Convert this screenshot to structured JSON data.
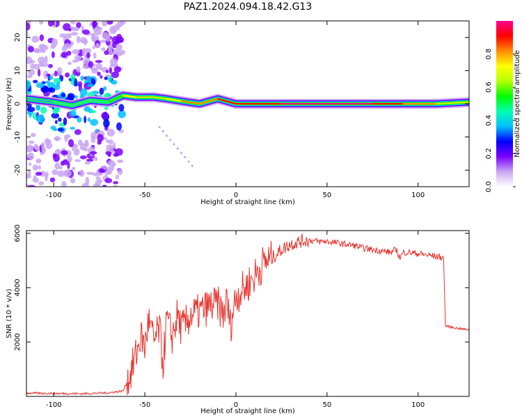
{
  "figure": {
    "title": "PAZ1.2024.094.18.42.G13"
  },
  "chart_data": [
    {
      "type": "heatmap",
      "xlabel": "Height of straight line (km)",
      "ylabel": "Frequency (Hz)",
      "xlim": [
        -115,
        128
      ],
      "ylim": [
        -25,
        25
      ],
      "xticks": [
        -100,
        -50,
        0,
        50,
        100
      ],
      "yticks": [
        -20,
        -10,
        0,
        10,
        20
      ],
      "colorbar": {
        "label": "Normalized spectral amplitude",
        "range": [
          0,
          1
        ],
        "ticks": [
          "0.0",
          "0.2",
          "0.4",
          "0.6",
          "0.8"
        ],
        "colors": [
          "#ffffff",
          "#c9a6f2",
          "#7b00ff",
          "#0000ff",
          "#00bfff",
          "#00ffb0",
          "#00ff00",
          "#b5ff00",
          "#ffff00",
          "#ff8c00",
          "#ff0000",
          "#ff0090"
        ]
      },
      "ridge": [
        {
          "x": -115,
          "f": 1.5,
          "a": 0.35
        },
        {
          "x": -100,
          "f": 0.5,
          "a": 0.45
        },
        {
          "x": -90,
          "f": -0.5,
          "a": 0.4
        },
        {
          "x": -80,
          "f": 1.0,
          "a": 0.45
        },
        {
          "x": -70,
          "f": 0.5,
          "a": 0.4
        },
        {
          "x": -62,
          "f": 2.5,
          "a": 0.75
        },
        {
          "x": -55,
          "f": 2.0,
          "a": 0.65
        },
        {
          "x": -45,
          "f": 2.0,
          "a": 0.6
        },
        {
          "x": -38,
          "f": 1.5,
          "a": 0.7
        },
        {
          "x": -30,
          "f": 0.8,
          "a": 0.75
        },
        {
          "x": -20,
          "f": 0.0,
          "a": 0.85
        },
        {
          "x": -10,
          "f": 1.5,
          "a": 0.8
        },
        {
          "x": 0,
          "f": 0.0,
          "a": 0.95
        },
        {
          "x": 25,
          "f": 0.0,
          "a": 0.95
        },
        {
          "x": 50,
          "f": 0.0,
          "a": 0.97
        },
        {
          "x": 75,
          "f": 0.0,
          "a": 0.95
        },
        {
          "x": 92,
          "f": 0.0,
          "a": 0.8
        },
        {
          "x": 110,
          "f": 0.0,
          "a": 0.75
        },
        {
          "x": 128,
          "f": 0.5,
          "a": 0.5
        }
      ]
    },
    {
      "type": "line",
      "xlabel": "Height of straight line (km)",
      "ylabel": "SNR (10 * v/v)",
      "xlim": [
        -115,
        128
      ],
      "ylim": [
        0,
        6100
      ],
      "xticks": [
        -100,
        -50,
        0,
        50,
        100
      ],
      "yticks": [
        2000,
        4000,
        6000
      ],
      "series": [
        {
          "color": "#e8332e",
          "x": [
            -115,
            -100,
            -85,
            -70,
            -62,
            -58,
            -55,
            -52,
            -50,
            -48,
            -45,
            -42,
            -40,
            -38,
            -35,
            -32,
            -30,
            -28,
            -25,
            -20,
            -15,
            -10,
            -7,
            -5,
            -3,
            0,
            5,
            10,
            15,
            20,
            25,
            30,
            35,
            40,
            45,
            50,
            55,
            60,
            65,
            70,
            75,
            80,
            85,
            88,
            90,
            92,
            95,
            100,
            105,
            110,
            114,
            115,
            118,
            122,
            128
          ],
          "values": [
            120,
            110,
            100,
            130,
            200,
            800,
            1500,
            2200,
            1800,
            2800,
            2000,
            2500,
            1200,
            2800,
            2200,
            3000,
            2500,
            2600,
            3000,
            3100,
            3300,
            3400,
            3000,
            3500,
            2600,
            3700,
            4000,
            4400,
            4900,
            5100,
            5400,
            5600,
            5700,
            5750,
            5700,
            5700,
            5650,
            5600,
            5550,
            5450,
            5400,
            5350,
            5300,
            5400,
            5100,
            5300,
            5300,
            5250,
            5200,
            5150,
            5100,
            2600,
            2550,
            2500,
            2450
          ]
        }
      ]
    }
  ]
}
